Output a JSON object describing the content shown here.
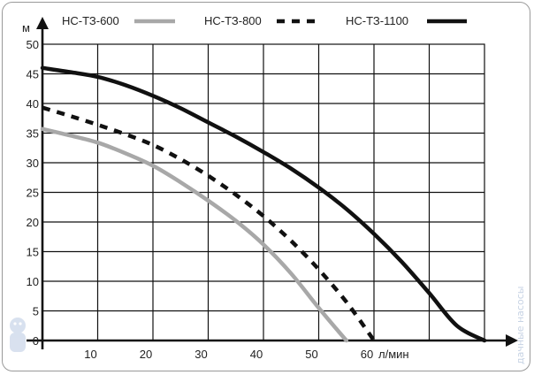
{
  "chart_data": {
    "type": "line",
    "title": "",
    "xlabel": "л/мин",
    "ylabel": "м",
    "xlim": [
      0,
      80
    ],
    "ylim": [
      0,
      50
    ],
    "xticks": [
      10,
      20,
      30,
      40,
      50,
      60
    ],
    "yticks": [
      0,
      5,
      10,
      15,
      20,
      25,
      30,
      35,
      40,
      45,
      50
    ],
    "grid": true,
    "legend_position": "top",
    "series": [
      {
        "name": "НС-ТЗ-600",
        "color": "#a8a8a8",
        "dash": "solid",
        "x": [
          0,
          5,
          10,
          15,
          20,
          25,
          30,
          35,
          40,
          45,
          50,
          55
        ],
        "y": [
          35.7,
          34.6,
          33.4,
          31.6,
          29.5,
          26.7,
          23.6,
          20.2,
          16.2,
          11.3,
          5.5,
          0
        ]
      },
      {
        "name": "НС-ТЗ-800",
        "color": "#111111",
        "dash": "dashed",
        "x": [
          0,
          5,
          10,
          15,
          20,
          25,
          30,
          35,
          40,
          45,
          50,
          55,
          60
        ],
        "y": [
          39.3,
          37.9,
          36.4,
          34.8,
          33.0,
          30.6,
          27.8,
          24.6,
          21.0,
          16.8,
          12.0,
          6.5,
          0
        ]
      },
      {
        "name": "НС-ТЗ-1100",
        "color": "#111111",
        "dash": "solid",
        "x": [
          0,
          5,
          10,
          15,
          20,
          25,
          30,
          35,
          40,
          45,
          50,
          55,
          60,
          65,
          70,
          75,
          80
        ],
        "y": [
          46.0,
          45.3,
          44.5,
          43.1,
          41.3,
          39.2,
          36.8,
          34.4,
          31.8,
          29.0,
          25.8,
          22.2,
          18.0,
          13.3,
          8.0,
          2.5,
          0
        ]
      }
    ]
  },
  "watermark": "dachnye-nasosy-logo"
}
